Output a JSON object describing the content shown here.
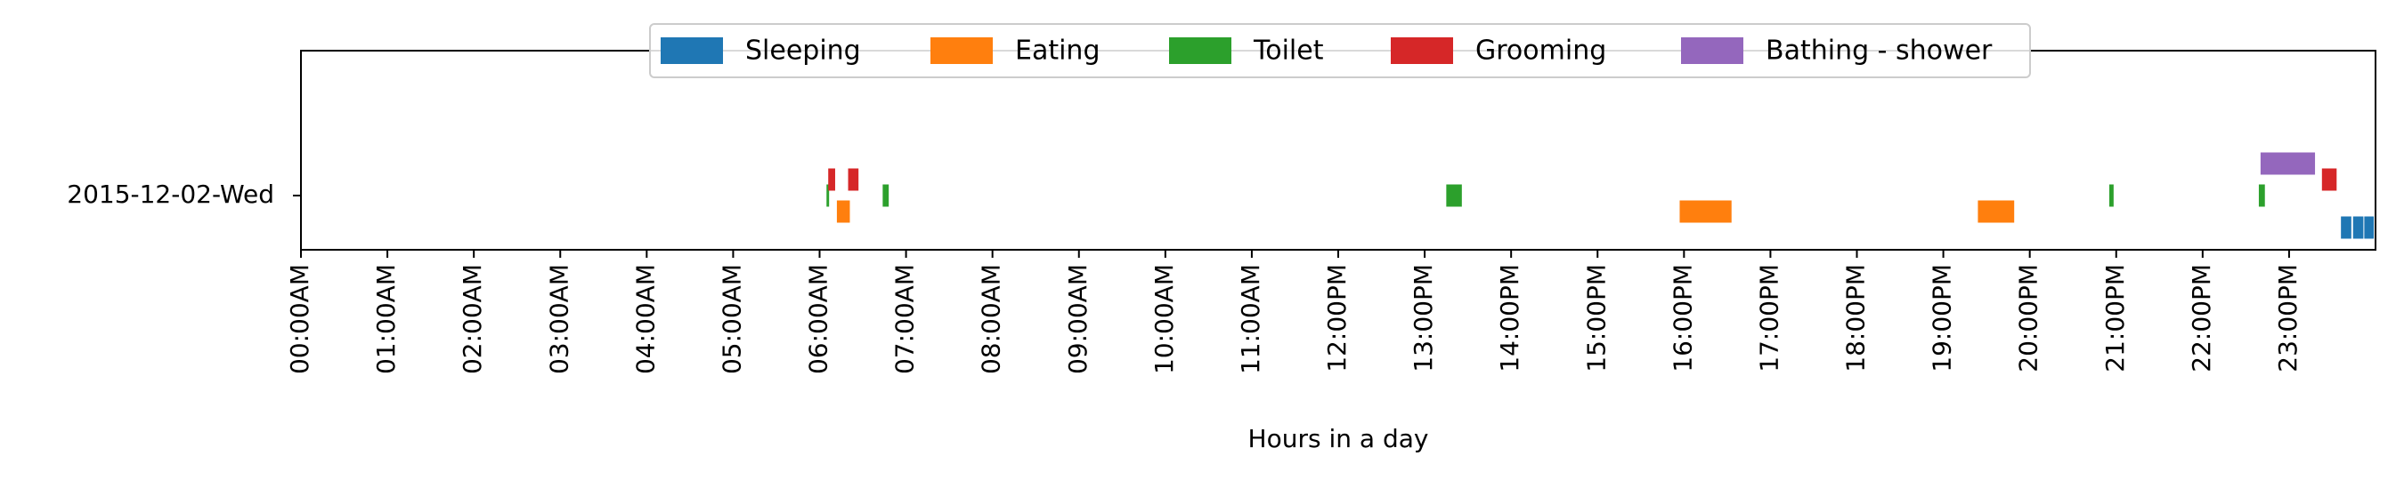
{
  "chart_data": {
    "type": "timeline",
    "title": "",
    "xlabel": "Hours in a day",
    "ylabel": "",
    "xlim": [
      0,
      24
    ],
    "x_tick_labels": [
      "00:00AM",
      "01:00AM",
      "02:00AM",
      "03:00AM",
      "04:00AM",
      "05:00AM",
      "06:00AM",
      "07:00AM",
      "08:00AM",
      "09:00AM",
      "10:00AM",
      "11:00AM",
      "12:00PM",
      "13:00PM",
      "14:00PM",
      "15:00PM",
      "16:00PM",
      "17:00PM",
      "18:00PM",
      "19:00PM",
      "20:00PM",
      "21:00PM",
      "22:00PM",
      "23:00PM"
    ],
    "rows": [
      "2015-12-02-Wed"
    ],
    "legend_placement": "top-center",
    "grid": false,
    "series": [
      {
        "name": "Sleeping",
        "color": "#1f77b4",
        "lane": -2,
        "intervals": [
          [
            23.6,
            23.72
          ],
          [
            23.74,
            23.86
          ],
          [
            23.87,
            23.98
          ]
        ]
      },
      {
        "name": "Eating",
        "color": "#ff7f0e",
        "lane": -1,
        "intervals": [
          [
            6.2,
            6.35
          ],
          [
            15.95,
            16.55
          ],
          [
            19.4,
            19.82
          ]
        ]
      },
      {
        "name": "Toilet",
        "color": "#2ca02c",
        "lane": 0,
        "intervals": [
          [
            6.08,
            6.11
          ],
          [
            6.73,
            6.8
          ],
          [
            13.25,
            13.43
          ],
          [
            20.92,
            20.97
          ],
          [
            22.65,
            22.72
          ]
        ]
      },
      {
        "name": "Grooming",
        "color": "#d62728",
        "lane": 1,
        "intervals": [
          [
            6.1,
            6.18
          ],
          [
            6.33,
            6.45
          ],
          [
            23.38,
            23.55
          ]
        ]
      },
      {
        "name": "Bathing - shower",
        "color": "#9467bd",
        "lane": 2,
        "intervals": [
          [
            22.67,
            23.3
          ]
        ]
      }
    ]
  }
}
